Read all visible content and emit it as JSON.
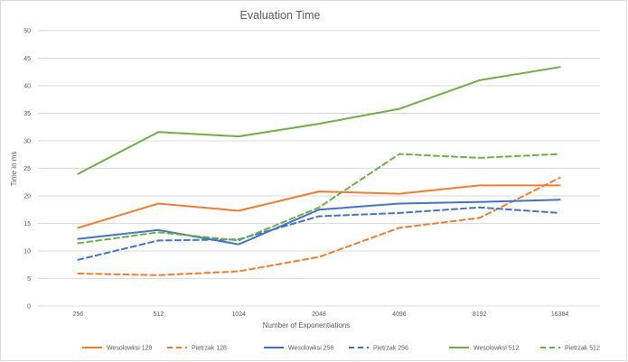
{
  "chart_data": {
    "type": "line",
    "title": "Evaluation Time",
    "xlabel": "Number of Exponentiations",
    "ylabel": "Time in ms",
    "categories": [
      "256",
      "512",
      "1024",
      "2048",
      "4096",
      "8192",
      "16384"
    ],
    "ylim": [
      0,
      50
    ],
    "yticks": [
      0,
      5,
      10,
      15,
      20,
      25,
      30,
      35,
      40,
      45,
      50
    ],
    "grid": true,
    "legend_position": "bottom",
    "series": [
      {
        "name": "Wesolowksi 128",
        "color": "#ED7D31",
        "dash": "solid",
        "values": [
          14.2,
          18.6,
          17.3,
          20.8,
          20.4,
          21.9,
          21.9
        ]
      },
      {
        "name": "Pietrzak 128",
        "color": "#ED7D31",
        "dash": "dashed",
        "values": [
          5.9,
          5.6,
          6.3,
          8.9,
          14.2,
          16.0,
          23.3
        ]
      },
      {
        "name": "Wesolowksi 256",
        "color": "#4472C4",
        "dash": "solid",
        "values": [
          12.2,
          13.8,
          11.2,
          17.5,
          18.6,
          18.9,
          19.3
        ]
      },
      {
        "name": "Pietrzak 256",
        "color": "#4472C4",
        "dash": "dashed",
        "values": [
          8.4,
          11.9,
          12.1,
          16.3,
          16.9,
          17.9,
          16.9
        ]
      },
      {
        "name": "Wesolowksi 512",
        "color": "#70AD47",
        "dash": "solid",
        "values": [
          24.0,
          31.6,
          30.8,
          33.1,
          35.8,
          41.0,
          43.4
        ]
      },
      {
        "name": "Pietrzak 512",
        "color": "#70AD47",
        "dash": "dashed",
        "values": [
          11.4,
          13.4,
          11.9,
          17.9,
          27.6,
          26.9,
          27.6
        ]
      }
    ]
  }
}
